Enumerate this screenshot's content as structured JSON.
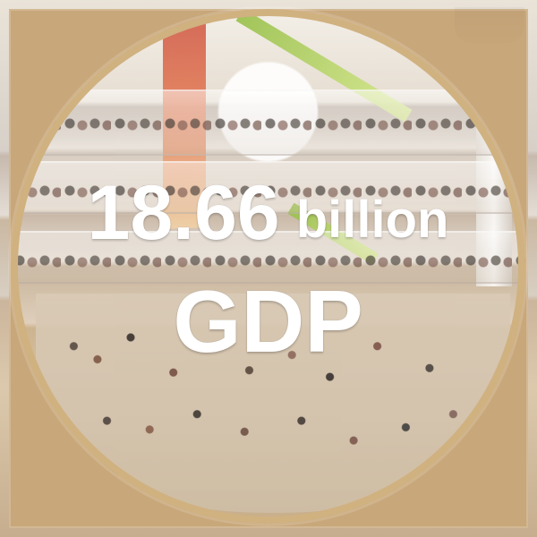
{
  "image": {
    "headline": {
      "value": "18.66",
      "unit": "billion",
      "label": "GDP"
    },
    "colors": {
      "frame": "#c8a77a",
      "text": "#ffffff",
      "accent_green": "#98c04a",
      "accent_red": "#d05b49"
    }
  }
}
